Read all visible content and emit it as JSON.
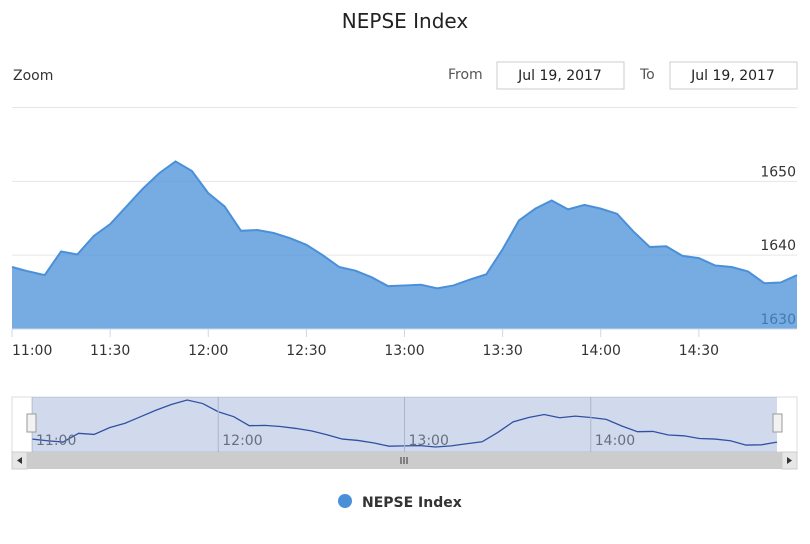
{
  "chart_data": {
    "type": "area",
    "title": "NEPSE Index",
    "range_selector": {
      "zoom_label": "Zoom",
      "from_label": "From",
      "from": "Jul 19, 2017",
      "to_label": "To",
      "to": "Jul 19, 2017"
    },
    "x": [
      "11:00",
      "11:05",
      "11:10",
      "11:15",
      "11:20",
      "11:25",
      "11:30",
      "11:35",
      "11:40",
      "11:45",
      "11:50",
      "11:55",
      "12:00",
      "12:05",
      "12:10",
      "12:15",
      "12:20",
      "12:25",
      "12:30",
      "12:35",
      "12:40",
      "12:45",
      "12:50",
      "12:55",
      "13:00",
      "13:05",
      "13:10",
      "13:15",
      "13:20",
      "13:25",
      "13:30",
      "13:35",
      "13:40",
      "13:45",
      "13:50",
      "13:55",
      "14:00",
      "14:05",
      "14:10",
      "14:15",
      "14:20",
      "14:25",
      "14:30",
      "14:35",
      "14:40",
      "14:45",
      "14:50",
      "14:55",
      "15:00"
    ],
    "series": [
      {
        "name": "NEPSE Index",
        "color": "#4a90d9",
        "values": [
          1638.4,
          1637.8,
          1637.3,
          1640.5,
          1640.1,
          1642.6,
          1644.2,
          1646.6,
          1649.0,
          1651.1,
          1652.7,
          1651.4,
          1648.4,
          1646.6,
          1643.3,
          1643.4,
          1643.0,
          1642.3,
          1641.4,
          1640.0,
          1638.4,
          1637.9,
          1637.0,
          1635.8,
          1635.9,
          1636.0,
          1635.5,
          1635.9,
          1636.7,
          1637.4,
          1640.8,
          1644.7,
          1646.3,
          1647.4,
          1646.2,
          1646.8,
          1646.3,
          1645.6,
          1643.2,
          1641.1,
          1641.2,
          1639.9,
          1639.6,
          1638.6,
          1638.4,
          1637.8,
          1636.2,
          1636.3,
          1637.3
        ]
      }
    ],
    "xlim": [
      "11:00",
      "15:00"
    ],
    "xticks": [
      "11:00",
      "11:30",
      "12:00",
      "12:30",
      "13:00",
      "13:30",
      "14:00",
      "14:30"
    ],
    "ylim": [
      1630,
      1660
    ],
    "yticks": [
      1630,
      1640,
      1650
    ],
    "navigator_xticks": [
      "11:00",
      "12:00",
      "13:00",
      "14:00"
    ],
    "grid": true
  }
}
